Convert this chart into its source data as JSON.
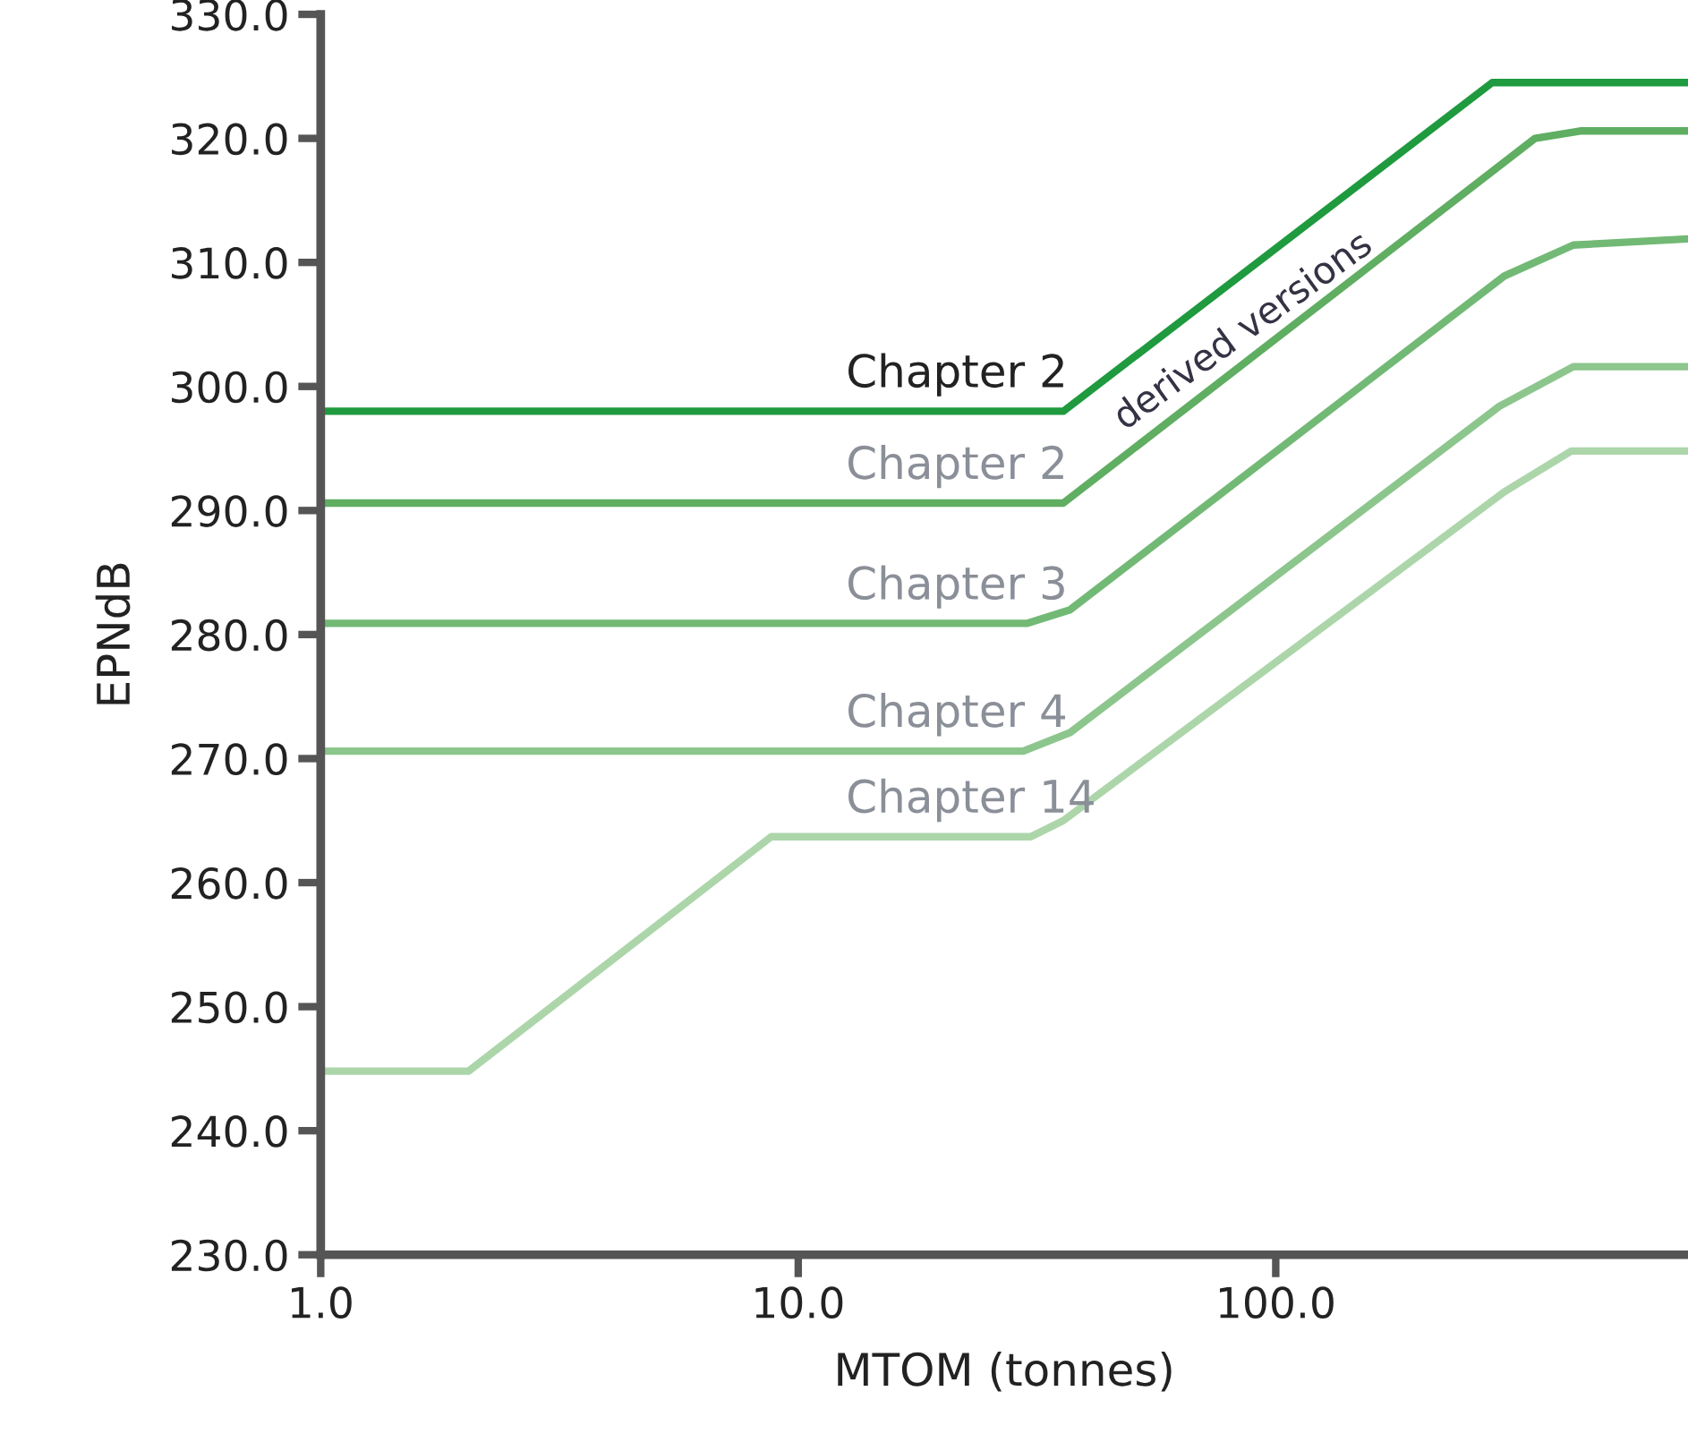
{
  "chart_data": {
    "type": "line",
    "xlabel": "MTOM (tonnes)",
    "ylabel": "EPNdB",
    "log": "x",
    "grid": false,
    "legend": false,
    "marker": "none",
    "line_style": "solid",
    "xlim": [
      1,
      730
    ],
    "ylim": [
      230,
      330
    ],
    "xticks": [
      {
        "value": 1,
        "label": "1.0"
      },
      {
        "value": 10,
        "label": "10.0"
      },
      {
        "value": 100,
        "label": "100.0"
      }
    ],
    "yticks": [
      {
        "value": 230,
        "label": "230.0"
      },
      {
        "value": 240,
        "label": "240.0"
      },
      {
        "value": 250,
        "label": "250.0"
      },
      {
        "value": 260,
        "label": "260.0"
      },
      {
        "value": 270,
        "label": "270.0"
      },
      {
        "value": 280,
        "label": "280.0"
      },
      {
        "value": 290,
        "label": "290.0"
      },
      {
        "value": 300,
        "label": "300.0"
      },
      {
        "value": 310,
        "label": "310.0"
      },
      {
        "value": 320,
        "label": "320.0"
      },
      {
        "value": 330,
        "label": "330.0"
      }
    ],
    "series": [
      {
        "name": "Chapter 2",
        "color": "#1f9a3f",
        "x": [
          1,
          35.9,
          284,
          730
        ],
        "values": [
          298.0,
          298.0,
          324.5,
          324.5
        ]
      },
      {
        "name": "Chapter 2",
        "color": "#5fae62",
        "x": [
          1,
          35.9,
          349,
          434,
          730
        ],
        "values": [
          290.6,
          290.6,
          320.0,
          320.6,
          320.6
        ]
      },
      {
        "name": "Chapter 3",
        "color": "#72b975",
        "x": [
          1,
          30.1,
          37.1,
          301,
          420,
          730
        ],
        "values": [
          280.9,
          280.9,
          282.0,
          308.9,
          311.4,
          311.9
        ]
      },
      {
        "name": "Chapter 4",
        "color": "#8cc68d",
        "x": [
          1,
          29.6,
          37.1,
          294,
          420,
          730
        ],
        "values": [
          270.6,
          270.6,
          272.1,
          298.4,
          301.6,
          301.6
        ]
      },
      {
        "name": "Chapter 14",
        "color": "#acd6aa",
        "x": [
          1,
          2.04,
          8.78,
          30.7,
          35.9,
          301,
          416,
          730
        ],
        "values": [
          244.8,
          244.8,
          263.7,
          263.7,
          265.0,
          291.5,
          294.8,
          294.8
        ]
      }
    ],
    "annotations": [
      "derived versions"
    ]
  }
}
